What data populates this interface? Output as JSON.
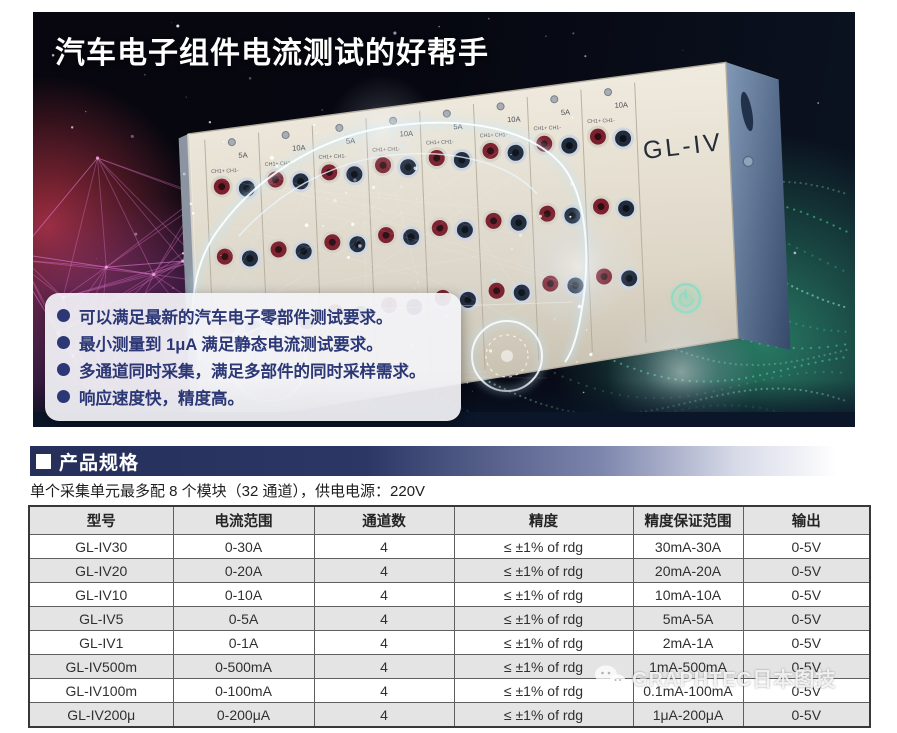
{
  "banner": {
    "title": "汽车电子组件电流测试的好帮手",
    "device_label": "GL-IV",
    "module_labels": [
      "5A",
      "10A"
    ],
    "channel_label": "CH1+ CH1-",
    "bullets": [
      "可以满足最新的汽车电子零部件测试要求。",
      "最小测量到 1μA 满足静态电流测试要求。",
      "多通道同时采集，满足多部件的同时采样需求。",
      "响应速度快，精度高。"
    ]
  },
  "section": {
    "title": "产品规格"
  },
  "spec_note": "单个采集单元最多配 8 个模块（32 通道），供电电源：220V",
  "table": {
    "headers": [
      "型号",
      "电流范围",
      "通道数",
      "精度",
      "精度保证范围",
      "输出"
    ],
    "rows": [
      [
        "GL-IV30",
        "0-30A",
        "4",
        "≤ ±1% of rdg",
        "30mA-30A",
        "0-5V"
      ],
      [
        "GL-IV20",
        "0-20A",
        "4",
        "≤ ±1% of rdg",
        "20mA-20A",
        "0-5V"
      ],
      [
        "GL-IV10",
        "0-10A",
        "4",
        "≤ ±1% of rdg",
        "10mA-10A",
        "0-5V"
      ],
      [
        "GL-IV5",
        "0-5A",
        "4",
        "≤ ±1% of rdg",
        "5mA-5A",
        "0-5V"
      ],
      [
        "GL-IV1",
        "0-1A",
        "4",
        "≤ ±1% of rdg",
        "2mA-1A",
        "0-5V"
      ],
      [
        "GL-IV500m",
        "0-500mA",
        "4",
        "≤ ±1% of rdg",
        "1mA-500mA",
        "0-5V"
      ],
      [
        "GL-IV100m",
        "0-100mA",
        "4",
        "≤ ±1% of rdg",
        "0.1mA-100mA",
        "0-5V"
      ],
      [
        "GL-IV200μ",
        "0-200μA",
        "4",
        "≤ ±1% of rdg",
        "1μA-200μA",
        "0-5V"
      ]
    ]
  },
  "watermark": {
    "text": "GRAPHTEC日本图技"
  },
  "colors": {
    "accent_navy": "#2c3766",
    "bullet_text": "#2c3876",
    "table_alt_row": "#e4e4e4",
    "teal_wave": "#3fe3a4",
    "magenta_mesh": "#d86fc0",
    "panel_beige": "#ddd6c7",
    "side_blue": "#52688a"
  }
}
